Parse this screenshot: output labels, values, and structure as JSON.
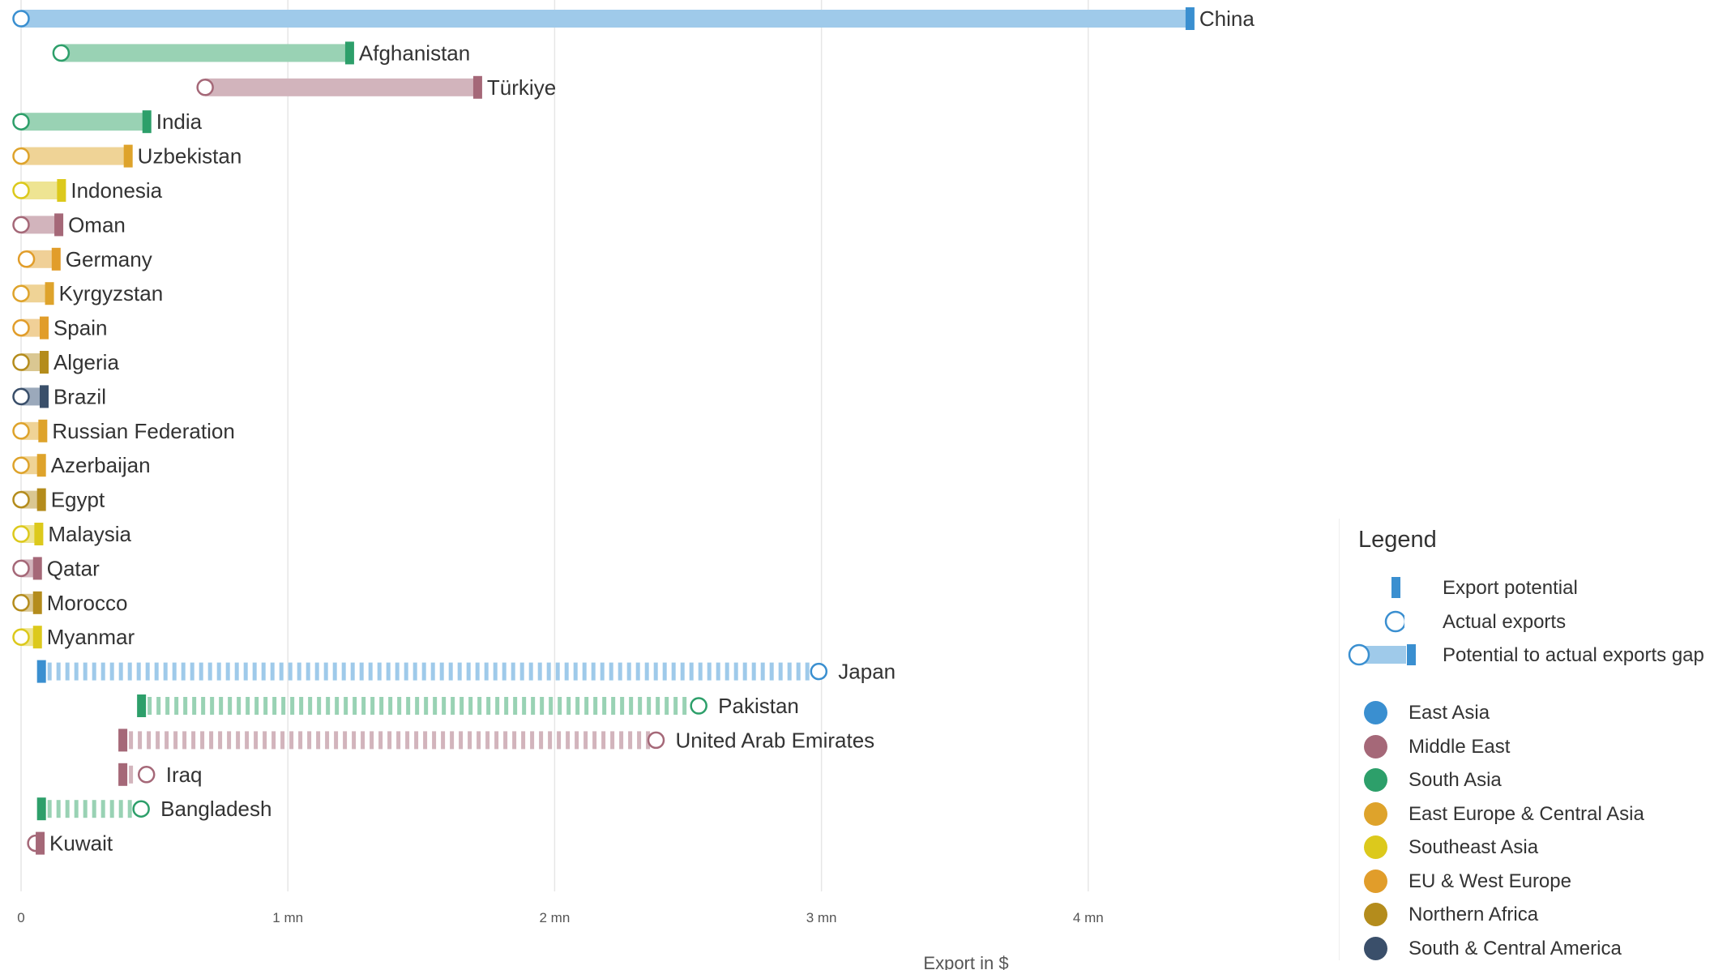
{
  "chart_data": {
    "type": "bar",
    "subtype": "dumbbell-range",
    "xlabel": "Export in $",
    "x_unit": "$",
    "xlim": [
      0,
      4600000
    ],
    "x_ticks": [
      0,
      1000000,
      2000000,
      3000000,
      4000000
    ],
    "x_tick_labels": [
      "0",
      "1 mn",
      "2 mn",
      "3 mn",
      "4 mn"
    ],
    "grid": "vertical",
    "legend_position": "right",
    "series": [
      {
        "name": "Export potential"
      },
      {
        "name": "Actual exports"
      },
      {
        "name": "Potential to actual exports gap"
      }
    ],
    "rows": [
      {
        "country": "China",
        "region": "East Asia",
        "actual": 0,
        "potential": 4380000
      },
      {
        "country": "Afghanistan",
        "region": "South Asia",
        "actual": 150000,
        "potential": 1230000
      },
      {
        "country": "Türkiye",
        "region": "Middle East",
        "actual": 690000,
        "potential": 1710000
      },
      {
        "country": "India",
        "region": "South Asia",
        "actual": 0,
        "potential": 470000
      },
      {
        "country": "Uzbekistan",
        "region": "East Europe & Central Asia",
        "actual": 0,
        "potential": 400000
      },
      {
        "country": "Indonesia",
        "region": "Southeast Asia",
        "actual": 0,
        "potential": 150000
      },
      {
        "country": "Oman",
        "region": "Middle East",
        "actual": 0,
        "potential": 140000
      },
      {
        "country": "Germany",
        "region": "EU & West Europe",
        "actual": 20000,
        "potential": 130000
      },
      {
        "country": "Kyrgyzstan",
        "region": "East Europe & Central Asia",
        "actual": 0,
        "potential": 105000
      },
      {
        "country": "Spain",
        "region": "EU & West Europe",
        "actual": 0,
        "potential": 85000
      },
      {
        "country": "Algeria",
        "region": "Northern Africa",
        "actual": 0,
        "potential": 85000
      },
      {
        "country": "Brazil",
        "region": "South & Central America",
        "actual": 0,
        "potential": 85000
      },
      {
        "country": "Russian Federation",
        "region": "East Europe & Central Asia",
        "actual": 0,
        "potential": 80000
      },
      {
        "country": "Azerbaijan",
        "region": "East Europe & Central Asia",
        "actual": 0,
        "potential": 75000
      },
      {
        "country": "Egypt",
        "region": "Northern Africa",
        "actual": 0,
        "potential": 75000
      },
      {
        "country": "Malaysia",
        "region": "Southeast Asia",
        "actual": 0,
        "potential": 65000
      },
      {
        "country": "Qatar",
        "region": "Middle East",
        "actual": 0,
        "potential": 60000
      },
      {
        "country": "Morocco",
        "region": "Northern Africa",
        "actual": 0,
        "potential": 60000
      },
      {
        "country": "Myanmar",
        "region": "Southeast Asia",
        "actual": 0,
        "potential": 60000
      },
      {
        "country": "Japan",
        "region": "East Asia",
        "actual": 2990000,
        "potential": 75000
      },
      {
        "country": "Pakistan",
        "region": "South Asia",
        "actual": 2540000,
        "potential": 450000
      },
      {
        "country": "United Arab Emirates",
        "region": "Middle East",
        "actual": 2380000,
        "potential": 380000
      },
      {
        "country": "Iraq",
        "region": "Middle East",
        "actual": 470000,
        "potential": 380000
      },
      {
        "country": "Bangladesh",
        "region": "South Asia",
        "actual": 450000,
        "potential": 75000
      },
      {
        "country": "Kuwait",
        "region": "Middle East",
        "actual": 55000,
        "potential": 70000
      }
    ],
    "regions": [
      {
        "name": "East Asia",
        "color": "#3a8fd0",
        "light": "#9fcaea"
      },
      {
        "name": "Middle East",
        "color": "#a56878",
        "light": "#d2b4bc"
      },
      {
        "name": "South Asia",
        "color": "#2d9f6a",
        "light": "#99d2b4"
      },
      {
        "name": "East Europe & Central Asia",
        "color": "#dea32b",
        "light": "#efd396"
      },
      {
        "name": "Southeast Asia",
        "color": "#dcc91c",
        "light": "#eee492"
      },
      {
        "name": "EU & West Europe",
        "color": "#e19d2a",
        "light": "#f0d097"
      },
      {
        "name": "Northern Africa",
        "color": "#b48c1c",
        "light": "#dac792"
      },
      {
        "name": "South & Central America",
        "color": "#3a4f6a",
        "light": "#9ba9bb"
      }
    ]
  },
  "legend": {
    "title": "Legend",
    "items": [
      {
        "label": "Export potential",
        "icon": "potential-marker-icon"
      },
      {
        "label": "Actual exports",
        "icon": "actual-circle-icon"
      },
      {
        "label": "Potential to actual exports gap",
        "icon": "gap-marker-icon"
      }
    ],
    "regions": [
      {
        "label": "East Asia"
      },
      {
        "label": "Middle East"
      },
      {
        "label": "South Asia"
      },
      {
        "label": "East Europe & Central Asia"
      },
      {
        "label": "Southeast Asia"
      },
      {
        "label": "EU & West Europe"
      },
      {
        "label": "Northern Africa"
      },
      {
        "label": "South & Central America"
      }
    ]
  }
}
